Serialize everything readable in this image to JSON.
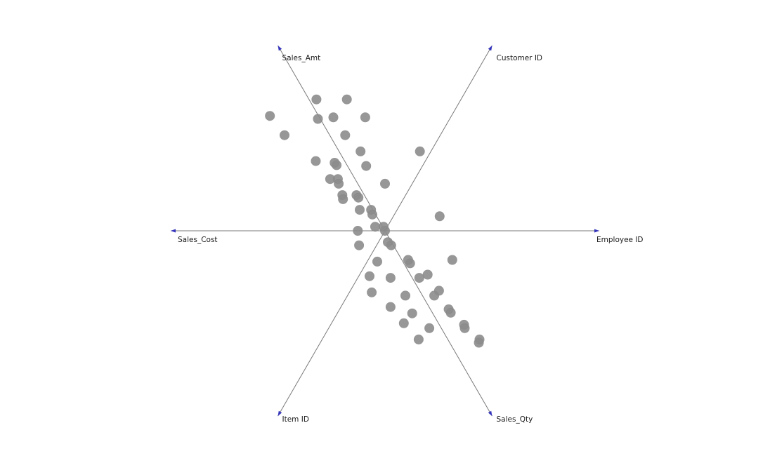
{
  "chart_data": {
    "type": "scatter",
    "subtype": "radviz",
    "title": "",
    "axes": [
      {
        "name": "Employee ID",
        "angle_deg": 0
      },
      {
        "name": "Customer ID",
        "angle_deg": 60
      },
      {
        "name": "Sales_Amt",
        "angle_deg": 120
      },
      {
        "name": "Sales_Cost",
        "angle_deg": 180
      },
      {
        "name": "Item ID",
        "angle_deg": 240
      },
      {
        "name": "Sales_Qty",
        "angle_deg": 300
      }
    ],
    "xlim": [
      -1,
      1
    ],
    "ylim": [
      -1,
      1
    ],
    "grid": false,
    "legend": "none",
    "colors": {
      "axis": "#7a7a7a",
      "anchor": "#3333bb",
      "point_fill": "#8c8c8c",
      "point_stroke": "#8a8a8a"
    },
    "points": [
      {
        "x": -0.537,
        "y": 0.537
      },
      {
        "x": -0.469,
        "y": 0.447
      },
      {
        "x": -0.32,
        "y": 0.614
      },
      {
        "x": -0.313,
        "y": 0.523
      },
      {
        "x": -0.241,
        "y": 0.53
      },
      {
        "x": -0.178,
        "y": 0.614
      },
      {
        "x": -0.092,
        "y": 0.53
      },
      {
        "x": -0.186,
        "y": 0.447
      },
      {
        "x": -0.114,
        "y": 0.371
      },
      {
        "x": -0.323,
        "y": 0.326
      },
      {
        "x": -0.235,
        "y": 0.318
      },
      {
        "x": -0.226,
        "y": 0.307
      },
      {
        "x": -0.088,
        "y": 0.303
      },
      {
        "x": -0.256,
        "y": 0.242
      },
      {
        "x": -0.22,
        "y": 0.242
      },
      {
        "x": -0.216,
        "y": 0.22
      },
      {
        "x": 0.0,
        "y": 0.22
      },
      {
        "x": 0.163,
        "y": 0.371
      },
      {
        "x": -0.199,
        "y": 0.167
      },
      {
        "x": -0.196,
        "y": 0.148
      },
      {
        "x": -0.133,
        "y": 0.167
      },
      {
        "x": -0.124,
        "y": 0.155
      },
      {
        "x": -0.118,
        "y": 0.098
      },
      {
        "x": -0.065,
        "y": 0.098
      },
      {
        "x": -0.059,
        "y": 0.076
      },
      {
        "x": -0.046,
        "y": 0.019
      },
      {
        "x": -0.007,
        "y": 0.019
      },
      {
        "x": 0.0,
        "y": 0.0
      },
      {
        "x": -0.127,
        "y": 0.0
      },
      {
        "x": 0.255,
        "y": 0.068
      },
      {
        "x": 0.013,
        "y": -0.053
      },
      {
        "x": 0.029,
        "y": -0.068
      },
      {
        "x": -0.121,
        "y": -0.068
      },
      {
        "x": -0.036,
        "y": -0.144
      },
      {
        "x": 0.108,
        "y": -0.136
      },
      {
        "x": 0.117,
        "y": -0.152
      },
      {
        "x": 0.314,
        "y": -0.136
      },
      {
        "x": -0.072,
        "y": -0.212
      },
      {
        "x": 0.026,
        "y": -0.22
      },
      {
        "x": 0.16,
        "y": -0.22
      },
      {
        "x": 0.199,
        "y": -0.205
      },
      {
        "x": -0.062,
        "y": -0.288
      },
      {
        "x": 0.095,
        "y": -0.303
      },
      {
        "x": 0.23,
        "y": -0.303
      },
      {
        "x": 0.252,
        "y": -0.28
      },
      {
        "x": 0.026,
        "y": -0.356
      },
      {
        "x": 0.127,
        "y": -0.386
      },
      {
        "x": 0.297,
        "y": -0.367
      },
      {
        "x": 0.307,
        "y": -0.383
      },
      {
        "x": 0.088,
        "y": -0.432
      },
      {
        "x": 0.207,
        "y": -0.455
      },
      {
        "x": 0.369,
        "y": -0.439
      },
      {
        "x": 0.372,
        "y": -0.455
      },
      {
        "x": 0.157,
        "y": -0.508
      },
      {
        "x": 0.441,
        "y": -0.508
      },
      {
        "x": 0.438,
        "y": -0.523
      }
    ]
  }
}
